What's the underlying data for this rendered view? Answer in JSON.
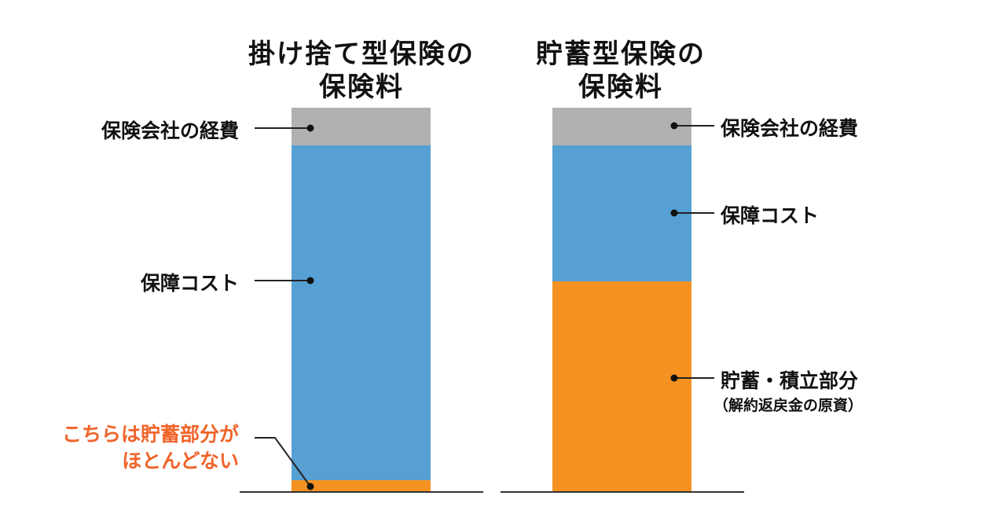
{
  "colors": {
    "expense": "#b1b1b1",
    "coverage": "#56a0d3",
    "savings": "#f59221",
    "accent_text": "#f0642a"
  },
  "left": {
    "title_line1": "掛け捨て型保険の",
    "title_line2": "保険料",
    "label_expense": "保険会社の経費",
    "label_coverage": "保障コスト",
    "note_line1": "こちらは貯蓄部分が",
    "note_line2": "ほとんどない"
  },
  "right": {
    "title_line1": "貯蓄型保険の",
    "title_line2": "保険料",
    "label_expense": "保険会社の経費",
    "label_coverage": "保障コスト",
    "label_savings": "貯蓄・積立部分",
    "label_savings_sub": "（解約返戻金の原資）"
  },
  "chart_data": [
    {
      "type": "bar",
      "title": "掛け捨て型保険の保険料",
      "stacked": true,
      "segments": [
        {
          "name": "保険会社の経費",
          "share": 0.1
        },
        {
          "name": "保障コスト",
          "share": 0.87
        },
        {
          "name": "貯蓄部分",
          "share": 0.03
        }
      ]
    },
    {
      "type": "bar",
      "title": "貯蓄型保険の保険料",
      "stacked": true,
      "segments": [
        {
          "name": "保険会社の経費",
          "share": 0.1
        },
        {
          "name": "保障コスト",
          "share": 0.36
        },
        {
          "name": "貯蓄・積立部分",
          "share": 0.54
        }
      ]
    }
  ]
}
